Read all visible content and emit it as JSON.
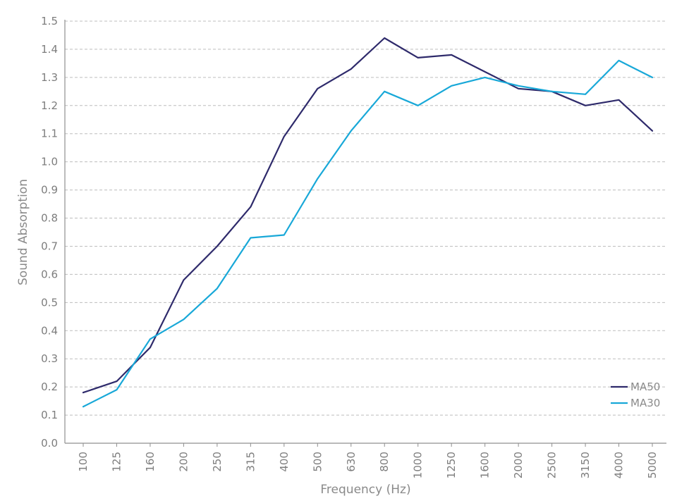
{
  "chart_data": {
    "type": "line",
    "xlabel": "Frequency (Hz)",
    "ylabel": "Sound Absorption",
    "ylim": [
      0,
      1.5
    ],
    "yticks": [
      "0.0",
      "0.1",
      "0.2",
      "0.3",
      "0.4",
      "0.5",
      "0.6",
      "0.7",
      "0.8",
      "0.9",
      "1.0",
      "1.1",
      "1.2",
      "1.3",
      "1.4",
      "1.5"
    ],
    "categories": [
      "100",
      "125",
      "160",
      "200",
      "250",
      "315",
      "400",
      "500",
      "630",
      "800",
      "1000",
      "1250",
      "1600",
      "2000",
      "2500",
      "3150",
      "4000",
      "5000"
    ],
    "grid": true,
    "legend_position": "bottom-right",
    "series": [
      {
        "name": "MA50",
        "color": "#2e2a6b",
        "values": [
          0.18,
          0.22,
          0.34,
          0.58,
          0.7,
          0.84,
          1.09,
          1.26,
          1.33,
          1.44,
          1.37,
          1.38,
          1.32,
          1.26,
          1.25,
          1.2,
          1.22,
          1.11
        ]
      },
      {
        "name": "MA30",
        "color": "#18a8d8",
        "values": [
          0.13,
          0.19,
          0.37,
          0.44,
          0.55,
          0.73,
          0.74,
          0.94,
          1.11,
          1.25,
          1.2,
          1.27,
          1.3,
          1.27,
          1.25,
          1.24,
          1.36,
          1.3
        ]
      }
    ]
  }
}
